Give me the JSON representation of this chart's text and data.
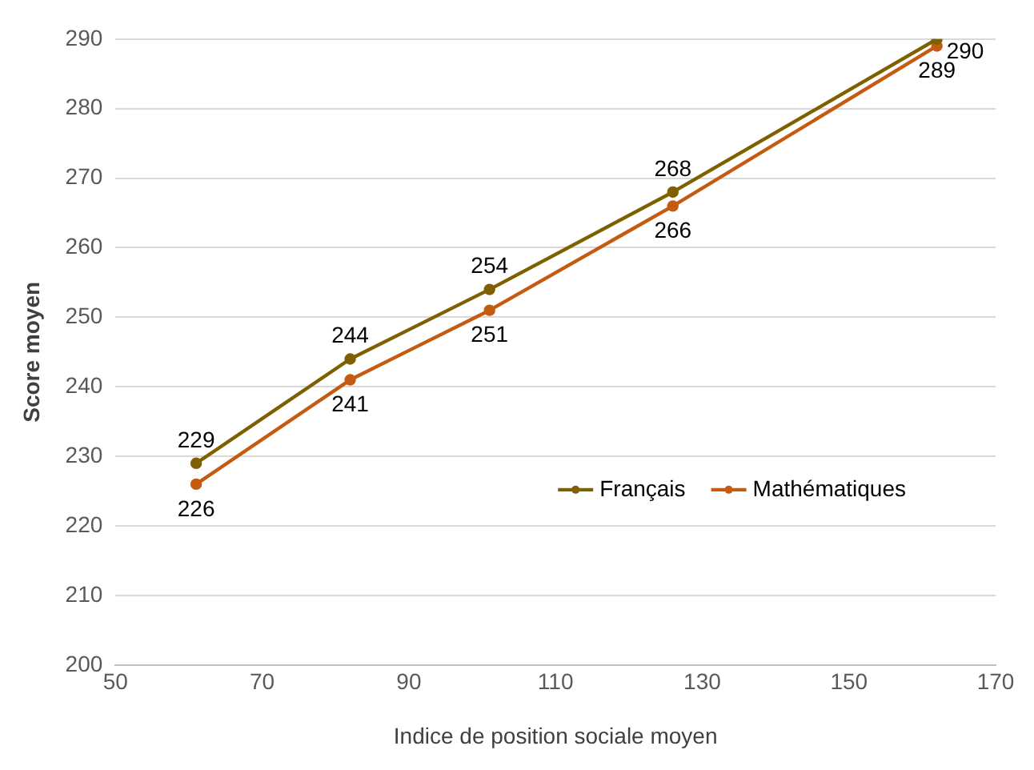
{
  "chart_data": {
    "type": "line",
    "xlabel": "Indice de position sociale moyen",
    "ylabel": "Score moyen",
    "x": [
      61,
      82,
      101,
      126,
      162
    ],
    "series": [
      {
        "name": "Français",
        "color": "#7f6000",
        "values": [
          229,
          244,
          254,
          268,
          290
        ]
      },
      {
        "name": "Mathématiques",
        "color": "#c55a11",
        "values": [
          226,
          241,
          251,
          266,
          289
        ]
      }
    ],
    "xlim": [
      50,
      170
    ],
    "xticks": [
      50,
      70,
      90,
      110,
      130,
      150,
      170
    ],
    "ylim": [
      200,
      290
    ],
    "yticks": [
      200,
      210,
      220,
      230,
      240,
      250,
      260,
      270,
      280,
      290
    ],
    "grid": "y",
    "legend": "bottom right",
    "marker": "circle",
    "line_style": "solid",
    "data_labels": true
  }
}
